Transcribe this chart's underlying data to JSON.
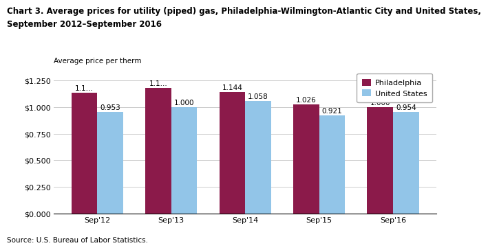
{
  "title_line1": "Chart 3. Average prices for utility (piped) gas, Philadelphia-Wilmington-Atlantic City and United States,",
  "title_line2": "September 2012–September 2016",
  "ylabel": "Average price per therm",
  "categories": [
    "Sep'12",
    "Sep'13",
    "Sep'14",
    "Sep'15",
    "Sep'16"
  ],
  "philadelphia": [
    1.137,
    1.179,
    1.144,
    1.026,
    1.0
  ],
  "us": [
    0.953,
    1.0,
    1.058,
    0.921,
    0.954
  ],
  "philly_labels": [
    "1.1...",
    "1.1...",
    "1.144",
    "1.026",
    "1.000"
  ],
  "us_labels": [
    "0.953",
    "1.000",
    "1.058",
    "0.921",
    "0.954"
  ],
  "philly_color": "#8B1A4A",
  "us_color": "#92C5E8",
  "ylim": [
    0,
    1.35
  ],
  "yticks": [
    0.0,
    0.25,
    0.5,
    0.75,
    1.0,
    1.25
  ],
  "ytick_labels": [
    "$0.000",
    "$0.250",
    "$0.500",
    "$0.750",
    "$1.000",
    "$1.250"
  ],
  "source": "Source: U.S. Bureau of Labor Statistics.",
  "legend_philly": "Philadelphia",
  "legend_us": "United States",
  "bar_width": 0.35,
  "title_fontsize": 8.5,
  "axis_fontsize": 8,
  "label_fontsize": 7.5,
  "legend_fontsize": 8
}
